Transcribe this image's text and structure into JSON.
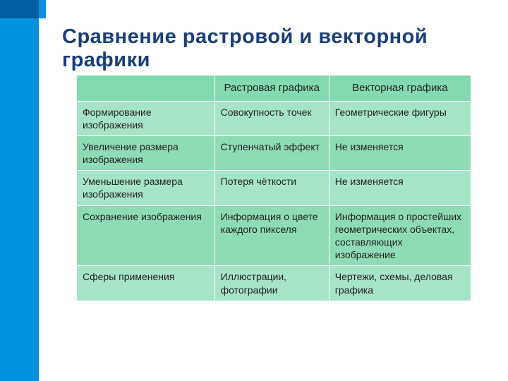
{
  "accent_dark": "#005ea1",
  "accent_light": "#0392de",
  "title_color": "#1a3f78",
  "table_header_bg": "#83dab0",
  "table_row_bg_a": "#a6e4c7",
  "table_row_bg_b": "#8ddcb6",
  "title": "Сравнение растровой и векторной графики",
  "table": {
    "columns": [
      "",
      "Растровая графика",
      "Векторная графика"
    ],
    "col_widths": [
      "35%",
      "29%",
      "36%"
    ],
    "rows": [
      [
        "Формирование изображения",
        "Совокупность точек",
        "Геометрические фигуры"
      ],
      [
        "Увеличение размера изображения",
        "Ступенчатый эффект",
        "Не изменяется"
      ],
      [
        "Уменьшение размера изображения",
        "Потеря чёткости",
        "Не изменяется"
      ],
      [
        "Сохранение изображения",
        "Информация о цвете каждого пикселя",
        "Информация о простейших геометрических объектах, составляющих изображение"
      ],
      [
        "Сферы применения",
        "Иллюстрации, фотографии",
        "Чертежи, схемы, деловая графика"
      ]
    ]
  }
}
